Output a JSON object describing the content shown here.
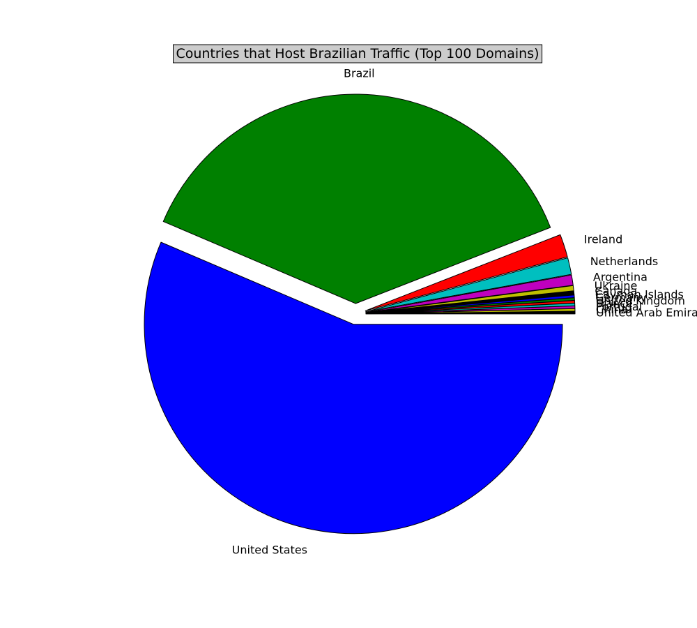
{
  "chart_data": {
    "type": "pie",
    "title": "Countries that Host Brazilian Traffic (Top 100 Domains)",
    "start_angle_deg": 0,
    "direction": "clockwise",
    "labels": [
      "United States",
      "Brazil",
      "Ireland",
      "Netherlands",
      "Argentina",
      "Ukraine",
      "Canada",
      "Cayman Islands",
      "Germany",
      "United Kingdom",
      "France",
      "Portugal",
      "China",
      "United Arab Emirates"
    ],
    "values": [
      57.2,
      38.2,
      1.8,
      1.3,
      0.8,
      0.4,
      0.3,
      0.2,
      0.2,
      0.2,
      0.2,
      0.2,
      0.2,
      0.2
    ],
    "colors": [
      "#0000ff",
      "#008000",
      "#ff0000",
      "#00bfbf",
      "#bf00bf",
      "#bfbf00",
      "#000000",
      "#0000ff",
      "#008000",
      "#ff0000",
      "#00bfbf",
      "#bf00bf",
      "#bfbf00",
      "#000000"
    ],
    "explode": [
      0.05,
      0.05,
      0.05,
      0.05,
      0.05,
      0.05,
      0.05,
      0.05,
      0.05,
      0.05,
      0.05,
      0.05,
      0.05,
      0.05
    ],
    "legend": "none"
  }
}
